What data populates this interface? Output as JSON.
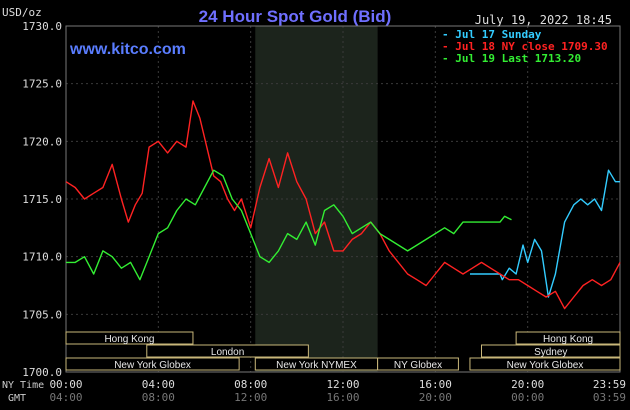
{
  "header": {
    "title": "24 Hour Spot Gold (Bid)",
    "unit": "USD/oz",
    "timestamp": "July 19, 2022 18:45",
    "site": "www.kitco.com"
  },
  "legend": [
    {
      "label": "Jul 17 Sunday",
      "color": "#33ccff"
    },
    {
      "label": "Jul 18 NY close 1709.30",
      "color": "#ff2222"
    },
    {
      "label": "Jul 19 Last 1713.20",
      "color": "#33ee33"
    }
  ],
  "axis": {
    "ny_time_label": "NY Time",
    "gmt_label": "GMT",
    "ny_ticks": [
      "00:00",
      "04:00",
      "08:00",
      "12:00",
      "16:00",
      "20:00",
      "23:59"
    ],
    "gmt_ticks": [
      "04:00",
      "08:00",
      "12:00",
      "16:00",
      "20:00",
      "00:00",
      "03:59"
    ],
    "y_ticks": [
      "1730.0",
      "1725.0",
      "1720.0",
      "1715.0",
      "1710.0",
      "1705.0",
      "1700.0"
    ]
  },
  "sessions": [
    {
      "label": "Hong Kong",
      "row": 0,
      "from": 0.0,
      "to": 5.5
    },
    {
      "label": "London",
      "row": 1,
      "from": 3.5,
      "to": 10.5
    },
    {
      "label": "New York Globex",
      "row": 2,
      "from": 0.0,
      "to": 7.5
    },
    {
      "label": "New York NYMEX",
      "row": 2,
      "from": 8.2,
      "to": 13.5
    },
    {
      "label": "NY Globex",
      "row": 2,
      "from": 13.5,
      "to": 17.0
    },
    {
      "label": "Hong Kong",
      "row": 0,
      "from": 19.5,
      "to": 24.0
    },
    {
      "label": "Sydney",
      "row": 1,
      "from": 18.0,
      "to": 24.0
    },
    {
      "label": "New York Globex",
      "row": 2,
      "from": 17.5,
      "to": 24.0
    }
  ],
  "chart_data": {
    "type": "line",
    "title": "24 Hour Spot Gold (Bid)",
    "ylabel": "USD/oz",
    "xlabel": "NY Time",
    "xlim": [
      0,
      24
    ],
    "ylim": [
      1700,
      1730
    ],
    "nymex_shade": [
      8.2,
      13.5
    ],
    "series": [
      {
        "name": "Jul 17 Sunday",
        "color": "#33ccff",
        "x": [
          17.5,
          18.8,
          18.9,
          19.2,
          19.5,
          19.8,
          20.0,
          20.3,
          20.6,
          20.9,
          21.2,
          21.6,
          22.0,
          22.3,
          22.6,
          22.9,
          23.2,
          23.5,
          23.8,
          24.0
        ],
        "y": [
          1708.5,
          1708.5,
          1708.0,
          1709.0,
          1708.5,
          1711.0,
          1709.5,
          1711.5,
          1710.5,
          1706.5,
          1708.5,
          1713.0,
          1714.5,
          1715.0,
          1714.5,
          1715.0,
          1714.0,
          1717.5,
          1716.5,
          1716.5
        ]
      },
      {
        "name": "Jul 18 NY close 1709.30",
        "color": "#ff2222",
        "x": [
          0.0,
          0.4,
          0.8,
          1.2,
          1.6,
          2.0,
          2.4,
          2.7,
          3.0,
          3.3,
          3.6,
          4.0,
          4.4,
          4.8,
          5.2,
          5.5,
          5.8,
          6.1,
          6.4,
          6.7,
          7.0,
          7.3,
          7.6,
          8.0,
          8.4,
          8.8,
          9.2,
          9.6,
          10.0,
          10.4,
          10.8,
          11.2,
          11.6,
          12.0,
          12.4,
          12.8,
          13.2,
          13.6,
          14.0,
          14.4,
          14.8,
          15.2,
          15.6,
          16.0,
          16.4,
          16.8,
          17.2,
          17.6,
          18.0,
          18.4,
          18.8,
          19.2,
          19.6,
          20.0,
          20.4,
          20.8,
          21.2,
          21.6,
          22.0,
          22.4,
          22.8,
          23.2,
          23.6,
          24.0
        ],
        "y": [
          1716.5,
          1716.0,
          1715.0,
          1715.5,
          1716.0,
          1718.0,
          1715.0,
          1713.0,
          1714.5,
          1715.5,
          1719.5,
          1720.0,
          1719.0,
          1720.0,
          1719.5,
          1723.5,
          1722.0,
          1719.5,
          1717.0,
          1716.5,
          1715.0,
          1714.0,
          1715.0,
          1712.5,
          1716.0,
          1718.5,
          1716.0,
          1719.0,
          1716.5,
          1715.0,
          1712.0,
          1713.0,
          1710.5,
          1710.5,
          1711.5,
          1712.0,
          1713.0,
          1712.0,
          1710.5,
          1709.5,
          1708.5,
          1708.0,
          1707.5,
          1708.5,
          1709.5,
          1709.0,
          1708.5,
          1709.0,
          1709.5,
          1709.0,
          1708.5,
          1708.0,
          1708.0,
          1707.5,
          1707.0,
          1706.5,
          1707.0,
          1705.5,
          1706.5,
          1707.5,
          1708.0,
          1707.5,
          1708.0,
          1709.5
        ]
      },
      {
        "name": "Jul 19 Last 1713.20",
        "color": "#33ee33",
        "x": [
          0.0,
          0.4,
          0.8,
          1.2,
          1.6,
          2.0,
          2.4,
          2.8,
          3.2,
          3.6,
          4.0,
          4.4,
          4.8,
          5.2,
          5.6,
          6.0,
          6.4,
          6.8,
          7.2,
          7.6,
          8.0,
          8.4,
          8.8,
          9.2,
          9.6,
          10.0,
          10.4,
          10.8,
          11.2,
          11.6,
          12.0,
          12.4,
          12.8,
          13.2,
          13.6,
          14.0,
          14.4,
          14.8,
          15.2,
          15.6,
          16.0,
          16.4,
          16.8,
          17.2,
          17.6,
          18.0,
          18.4,
          18.8,
          19.0,
          19.3
        ],
        "y": [
          1709.5,
          1709.5,
          1710.0,
          1708.5,
          1710.5,
          1710.0,
          1709.0,
          1709.5,
          1708.0,
          1710.0,
          1712.0,
          1712.5,
          1714.0,
          1715.0,
          1714.5,
          1716.0,
          1717.5,
          1717.0,
          1715.0,
          1714.0,
          1712.0,
          1710.0,
          1709.5,
          1710.5,
          1712.0,
          1711.5,
          1713.0,
          1711.0,
          1714.0,
          1714.5,
          1713.5,
          1712.0,
          1712.5,
          1713.0,
          1712.0,
          1711.5,
          1711.0,
          1710.5,
          1711.0,
          1711.5,
          1712.0,
          1712.5,
          1712.0,
          1713.0,
          1713.0,
          1713.0,
          1713.0,
          1713.0,
          1713.5,
          1713.2
        ]
      }
    ]
  }
}
